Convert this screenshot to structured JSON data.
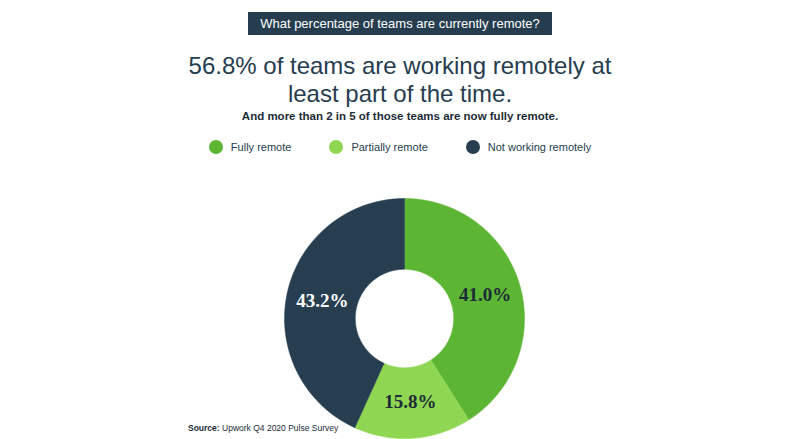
{
  "chart_data": {
    "type": "pie",
    "header": "What percentage of teams are currently remote?",
    "title": "56.8% of teams are working remotely at least part of the time.",
    "subtitle": "And more than 2 in 5 of those teams are now fully remote.",
    "categories": [
      "Fully remote",
      "Partially remote",
      "Not working remotely"
    ],
    "values": [
      41.0,
      15.8,
      43.2
    ],
    "value_labels": [
      "41.0%",
      "15.8%",
      "43.2%"
    ],
    "colors": [
      "#5db534",
      "#8fd652",
      "#273e50"
    ],
    "data_labels": true,
    "legend": "top",
    "source_label": "Source:",
    "source": "Upwork Q4 2020 Pulse Survey"
  }
}
